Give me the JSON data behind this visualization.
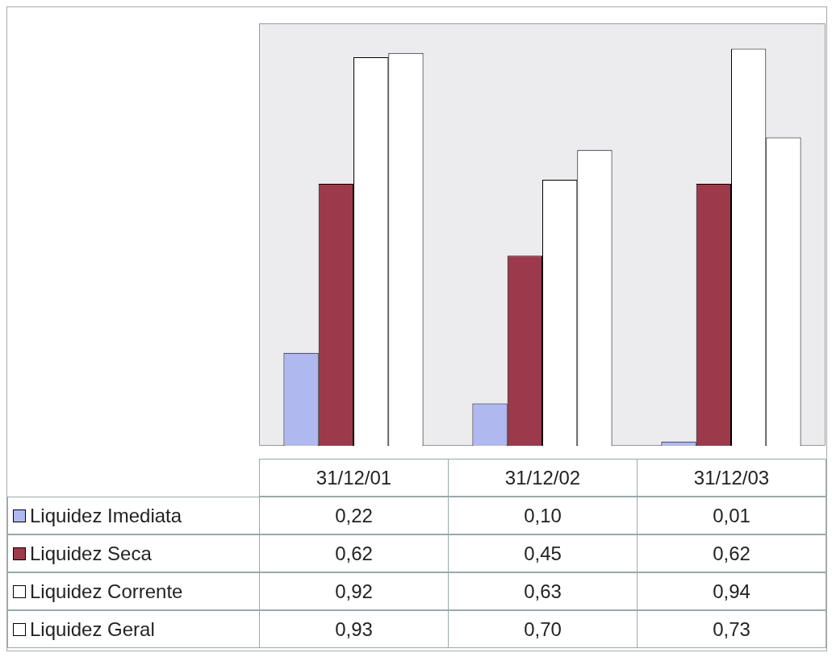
{
  "chart_data": {
    "type": "bar",
    "categories": [
      "31/12/01",
      "31/12/02",
      "31/12/03"
    ],
    "series": [
      {
        "name": "Liquidez Imediata",
        "color": "#b0b8f0",
        "values": [
          0.22,
          0.1,
          0.01
        ],
        "value_labels": [
          "0,22",
          "0,10",
          "0,01"
        ]
      },
      {
        "name": "Liquidez Seca",
        "color": "#9c3a4c",
        "values": [
          0.62,
          0.45,
          0.62
        ],
        "value_labels": [
          "0,62",
          "0,45",
          "0,62"
        ]
      },
      {
        "name": "Liquidez Corrente",
        "color": "#ffffff",
        "values": [
          0.92,
          0.63,
          0.94
        ],
        "value_labels": [
          "0,92",
          "0,63",
          "0,94"
        ]
      },
      {
        "name": "Liquidez Geral",
        "color": "#ffffff",
        "values": [
          0.93,
          0.7,
          0.73
        ],
        "value_labels": [
          "0,93",
          "0,70",
          "0,73"
        ]
      }
    ],
    "legend": "bottom"
  }
}
